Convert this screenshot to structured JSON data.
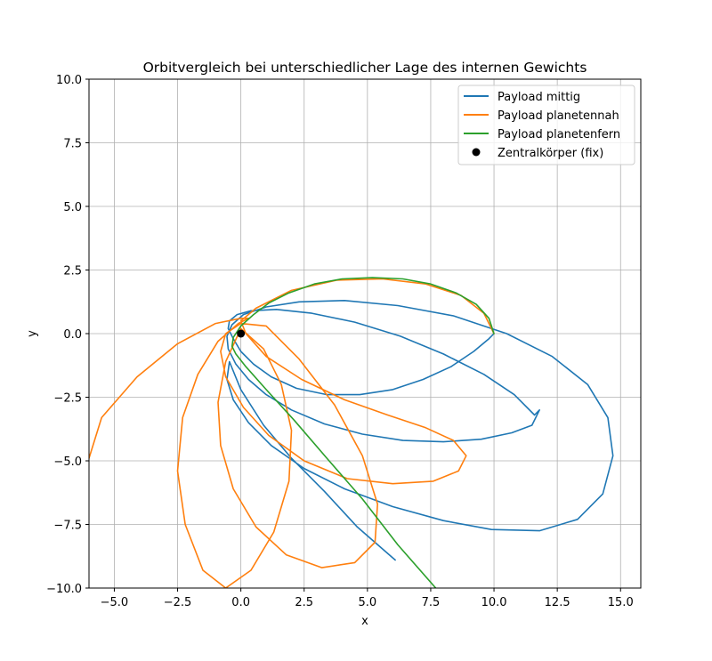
{
  "chart_data": {
    "type": "line",
    "title": "Orbitvergleich bei unterschiedlicher Lage des internen Gewichts",
    "xlabel": "x",
    "ylabel": "y",
    "xlim": [
      -6.0,
      15.8
    ],
    "ylim": [
      -10,
      10
    ],
    "grid": true,
    "legend_position": "top-right",
    "xticks": [
      -5.0,
      -2.5,
      0.0,
      2.5,
      5.0,
      7.5,
      10.0,
      12.5,
      15.0
    ],
    "yticks": [
      -10.0,
      -7.5,
      -5.0,
      -2.5,
      0.0,
      2.5,
      5.0,
      7.5,
      10.0
    ],
    "xtick_labels": [
      "−5.0",
      "−2.5",
      "0.0",
      "2.5",
      "5.0",
      "7.5",
      "10.0",
      "12.5",
      "15.0"
    ],
    "ytick_labels": [
      "−10.0",
      "−7.5",
      "−5.0",
      "−2.5",
      "0.0",
      "2.5",
      "5.0",
      "7.5",
      "10.0"
    ],
    "series": [
      {
        "name": "Payload mittig",
        "color": "#1f77b4",
        "x": [
          10.0,
          9.8,
          9.2,
          8.3,
          7.2,
          6.0,
          4.7,
          3.4,
          2.2,
          1.2,
          0.5,
          0.0,
          -0.3,
          -0.5,
          -0.45,
          -0.15,
          0.4,
          1.4,
          2.8,
          4.5,
          6.3,
          8.0,
          9.6,
          10.8,
          11.6,
          11.8,
          11.5,
          10.7,
          9.5,
          8.0,
          6.4,
          4.8,
          3.3,
          2.0,
          1.0,
          0.3,
          -0.2,
          -0.5,
          -0.55,
          -0.35,
          0.1,
          1.0,
          2.3,
          4.1,
          6.2,
          8.4,
          10.5,
          12.3,
          13.7,
          14.5,
          14.7,
          14.3,
          13.3,
          11.8,
          9.9,
          8.0,
          6.0,
          4.1,
          2.5,
          1.2,
          0.3,
          -0.3,
          -0.55,
          -0.45,
          0.0,
          0.9,
          2.0,
          3.3,
          4.6,
          6.1
        ],
        "y": [
          0.0,
          -0.2,
          -0.7,
          -1.3,
          -1.8,
          -2.2,
          -2.4,
          -2.4,
          -2.15,
          -1.7,
          -1.2,
          -0.7,
          -0.2,
          0.2,
          0.5,
          0.75,
          0.9,
          0.95,
          0.8,
          0.45,
          -0.1,
          -0.8,
          -1.6,
          -2.4,
          -3.2,
          -3.0,
          -3.6,
          -3.9,
          -4.15,
          -4.25,
          -4.2,
          -3.95,
          -3.55,
          -3.0,
          -2.4,
          -1.8,
          -1.2,
          -0.6,
          -0.1,
          0.35,
          0.75,
          1.05,
          1.25,
          1.3,
          1.1,
          0.7,
          0.0,
          -0.9,
          -2.0,
          -3.3,
          -4.8,
          -6.3,
          -7.3,
          -7.75,
          -7.7,
          -7.35,
          -6.8,
          -6.1,
          -5.3,
          -4.4,
          -3.5,
          -2.6,
          -1.8,
          -1.1,
          -2.2,
          -3.6,
          -4.9,
          -6.2,
          -7.6,
          -8.9
        ]
      },
      {
        "name": "Payload planetennah",
        "color": "#ff7f0e",
        "x": [
          10.0,
          9.6,
          8.7,
          7.3,
          5.6,
          3.8,
          2.0,
          0.6,
          0.0,
          0.2,
          1.0,
          2.4,
          4.1,
          5.8,
          7.3,
          8.4,
          8.9,
          8.6,
          7.6,
          6.0,
          4.2,
          2.5,
          1.1,
          0.1,
          -0.6,
          -0.8,
          -0.6,
          0.0,
          1.0,
          2.3,
          3.7,
          4.8,
          5.4,
          5.3,
          4.5,
          3.2,
          1.8,
          0.6,
          -0.3,
          -0.8,
          -0.9,
          -0.6,
          0.0,
          0.9,
          1.6,
          2.0,
          1.9,
          1.3,
          0.4,
          -0.6,
          -1.5,
          -2.2,
          -2.5,
          -2.3,
          -1.7,
          -0.9,
          -0.1,
          0.3,
          0.0,
          -1.0,
          -2.5,
          -4.1,
          -5.5,
          -6.0
        ],
        "y": [
          0.0,
          0.8,
          1.5,
          1.95,
          2.15,
          2.1,
          1.7,
          1.0,
          0.5,
          0.0,
          -0.9,
          -1.8,
          -2.6,
          -3.2,
          -3.7,
          -4.2,
          -4.8,
          -5.4,
          -5.8,
          -5.9,
          -5.7,
          -5.0,
          -4.0,
          -2.9,
          -1.7,
          -0.7,
          0.0,
          0.4,
          0.3,
          -1.0,
          -2.8,
          -4.8,
          -6.7,
          -8.2,
          -9.0,
          -9.2,
          -8.7,
          -7.6,
          -6.1,
          -4.4,
          -2.7,
          -1.1,
          0.2,
          -0.6,
          -2.0,
          -3.8,
          -5.8,
          -7.8,
          -9.3,
          -10.0,
          -9.3,
          -7.5,
          -5.4,
          -3.3,
          -1.6,
          -0.3,
          0.4,
          0.6,
          0.6,
          0.4,
          -0.4,
          -1.7,
          -3.3,
          -4.9
        ]
      },
      {
        "name": "Payload planetenfern",
        "color": "#2ca02c",
        "x": [
          10.0,
          9.8,
          9.3,
          8.5,
          7.5,
          6.4,
          5.2,
          4.0,
          2.9,
          1.9,
          1.1,
          0.5,
          0.0,
          -0.3,
          -0.35,
          -0.2,
          0.2,
          1.0,
          2.1,
          3.4,
          4.8,
          6.2,
          7.7
        ],
        "y": [
          0.0,
          0.6,
          1.15,
          1.6,
          1.95,
          2.15,
          2.2,
          2.15,
          1.95,
          1.6,
          1.2,
          0.75,
          0.3,
          -0.15,
          -0.5,
          -0.8,
          -1.3,
          -2.2,
          -3.4,
          -4.9,
          -6.5,
          -8.3,
          -10.0
        ]
      }
    ],
    "points": [
      {
        "name": "Zentralkörper (fix)",
        "color": "#000000",
        "x": 0.0,
        "y": 0.0
      }
    ]
  }
}
